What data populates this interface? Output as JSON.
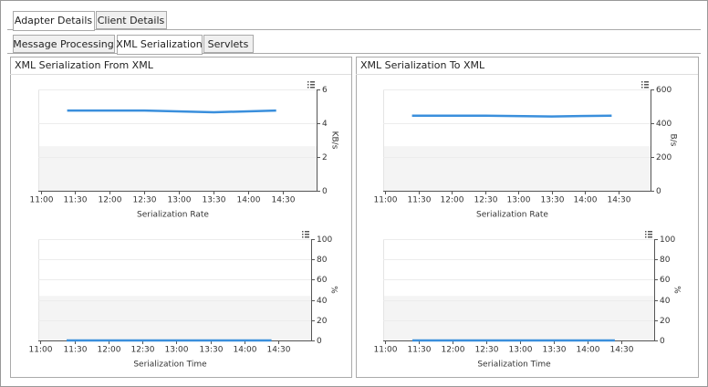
{
  "tabs": [
    "Adapter Details",
    "Client Details"
  ],
  "subtabs": [
    "Message Processing",
    "XML Serialization",
    "Servlets"
  ],
  "panels": [
    {
      "title": "XML Serialization From XML"
    },
    {
      "title": "XML Serialization To XML"
    }
  ],
  "chart_data": [
    {
      "type": "line",
      "x_label": "Serialization Rate",
      "y_label": "KB/s",
      "x": [
        "11:23",
        "12:30",
        "13:30",
        "14:24"
      ],
      "series": [
        {
          "color": "#3a8fdc",
          "values": [
            4.75,
            4.75,
            4.65,
            4.75
          ]
        }
      ],
      "xlim": [
        "10:58",
        "14:59"
      ],
      "xticks": [
        "11:00",
        "11:30",
        "12:00",
        "12:30",
        "13:00",
        "13:30",
        "14:00",
        "14:30"
      ],
      "ylim": [
        0,
        6
      ],
      "yticks": [
        0,
        2,
        4,
        6
      ]
    },
    {
      "type": "line",
      "x_label": "Serialization Time",
      "y_label": "%",
      "x": [
        "11:23",
        "14:24"
      ],
      "series": [
        {
          "color": "#3a8fdc",
          "values": [
            0,
            0
          ]
        }
      ],
      "xlim": [
        "10:58",
        "14:59"
      ],
      "xticks": [
        "11:00",
        "11:30",
        "12:00",
        "12:30",
        "13:00",
        "13:30",
        "14:00",
        "14:30"
      ],
      "ylim": [
        0,
        100
      ],
      "yticks": [
        0,
        20,
        40,
        60,
        80,
        100
      ]
    },
    {
      "type": "line",
      "x_label": "Serialization Rate",
      "y_label": "B/s",
      "x": [
        "11:24",
        "12:30",
        "13:30",
        "14:24"
      ],
      "series": [
        {
          "color": "#3a8fdc",
          "values": [
            445,
            445,
            440,
            445
          ]
        }
      ],
      "xlim": [
        "10:58",
        "14:59"
      ],
      "xticks": [
        "11:00",
        "11:30",
        "12:00",
        "12:30",
        "13:00",
        "13:30",
        "14:00",
        "14:30"
      ],
      "ylim": [
        0,
        600
      ],
      "yticks": [
        0,
        200,
        400,
        600
      ]
    },
    {
      "type": "line",
      "x_label": "Serialization Time",
      "y_label": "%",
      "x": [
        "11:24",
        "14:24"
      ],
      "series": [
        {
          "color": "#3a8fdc",
          "values": [
            0,
            0
          ]
        }
      ],
      "xlim": [
        "10:58",
        "14:59"
      ],
      "xticks": [
        "11:00",
        "11:30",
        "12:00",
        "12:30",
        "13:00",
        "13:30",
        "14:00",
        "14:30"
      ],
      "ylim": [
        0,
        100
      ],
      "yticks": [
        0,
        20,
        40,
        60,
        80,
        100
      ]
    }
  ]
}
